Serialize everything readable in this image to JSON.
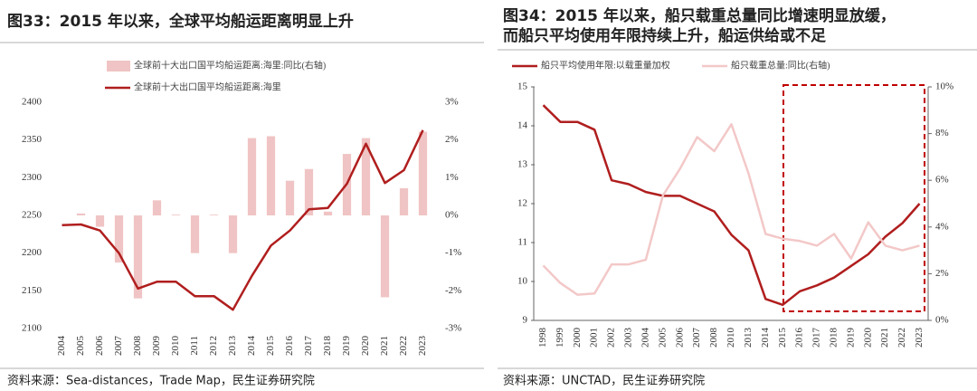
{
  "chart_data": [
    {
      "type": "bar_line",
      "title": [
        "图33：2015 年以来，全球平均船运距离明显上升"
      ],
      "source": "资料来源：Sea-distances，Trade Map，民生证券研究院",
      "categories": [
        "2004",
        "2005",
        "2006",
        "2007",
        "2008",
        "2009",
        "2010",
        "2011",
        "2012",
        "2013",
        "2014",
        "2015",
        "2016",
        "2017",
        "2018",
        "2019",
        "2020",
        "2021",
        "2022",
        "2023"
      ],
      "series": [
        {
          "name": "全球前十大出口国平均船运距离:海里:同比(右轴)",
          "type": "bar",
          "axis": "y2",
          "color": "#f0c4c4",
          "values": [
            0,
            0.05,
            -0.3,
            -1.25,
            -2.2,
            0.4,
            0.02,
            -1.0,
            0.02,
            -1.0,
            2.05,
            2.1,
            0.92,
            1.23,
            0.1,
            1.63,
            2.05,
            -2.17,
            0.72,
            2.22
          ]
        },
        {
          "name": "全球前十大出口国平均船运距离:海里",
          "type": "line",
          "axis": "y",
          "color": "#b01e1e",
          "values": [
            2237,
            2238,
            2230,
            2200,
            2153,
            2162,
            2162,
            2143,
            2143,
            2125,
            2170,
            2210,
            2230,
            2258,
            2260,
            2292,
            2345,
            2293,
            2310,
            2363
          ]
        }
      ],
      "ylim": [
        2100,
        2400
      ],
      "yticks": [
        2100,
        2150,
        2200,
        2250,
        2300,
        2350,
        2400
      ],
      "y2lim": [
        -3,
        3
      ],
      "y2ticks": [
        {
          "value": -3,
          "label": "-3%"
        },
        {
          "value": -2,
          "label": "-2%"
        },
        {
          "value": -1,
          "label": "-1%"
        },
        {
          "value": 0,
          "label": "0%"
        },
        {
          "value": 1,
          "label": "1%"
        },
        {
          "value": 2,
          "label": "2%"
        },
        {
          "value": 3,
          "label": "3%"
        }
      ],
      "grid": false
    },
    {
      "type": "line",
      "title": [
        "图34：2015 年以来，船只载重总量同比增速明显放缓，",
        "而船只平均使用年限持续上升，船运供给或不足"
      ],
      "source": "资料来源：UNCTAD，民生证券研究院",
      "categories": [
        "1998",
        "1999",
        "2000",
        "2001",
        "2002",
        "2003",
        "2004",
        "2005",
        "2006",
        "2007",
        "2008",
        "2010",
        "2013",
        "2014",
        "2015",
        "2016",
        "2017",
        "2018",
        "2019",
        "2020",
        "2021",
        "2022",
        "2023"
      ],
      "series": [
        {
          "name": "船只平均使用年限:以载重量加权",
          "type": "line",
          "axis": "y",
          "color": "#b01e1e",
          "values": [
            14.53,
            14.1,
            14.1,
            13.9,
            12.6,
            12.5,
            12.3,
            12.2,
            12.2,
            12.0,
            11.8,
            11.2,
            10.8,
            9.55,
            9.4,
            9.75,
            9.9,
            10.1,
            10.4,
            10.7,
            11.15,
            11.5,
            12.0
          ]
        },
        {
          "name": "船只载重总量:同比(右轴)",
          "type": "line",
          "axis": "y2",
          "color": "#f3c8c8",
          "values": [
            2.35,
            1.6,
            1.1,
            1.15,
            2.4,
            2.4,
            2.6,
            5.35,
            6.5,
            7.85,
            7.25,
            8.4,
            6.3,
            3.7,
            3.5,
            3.4,
            3.2,
            3.7,
            2.65,
            4.2,
            3.2,
            3.0,
            3.2
          ]
        }
      ],
      "ylim": [
        9,
        15
      ],
      "yticks": [
        9,
        10,
        11,
        12,
        13,
        14,
        15
      ],
      "y2lim": [
        0,
        10
      ],
      "y2ticks": [
        {
          "value": 0,
          "label": "0%"
        },
        {
          "value": 2,
          "label": "2%"
        },
        {
          "value": 4,
          "label": "4%"
        },
        {
          "value": 6,
          "label": "6%"
        },
        {
          "value": 8,
          "label": "8%"
        },
        {
          "value": 10,
          "label": "10%"
        }
      ],
      "grid": false
    }
  ]
}
